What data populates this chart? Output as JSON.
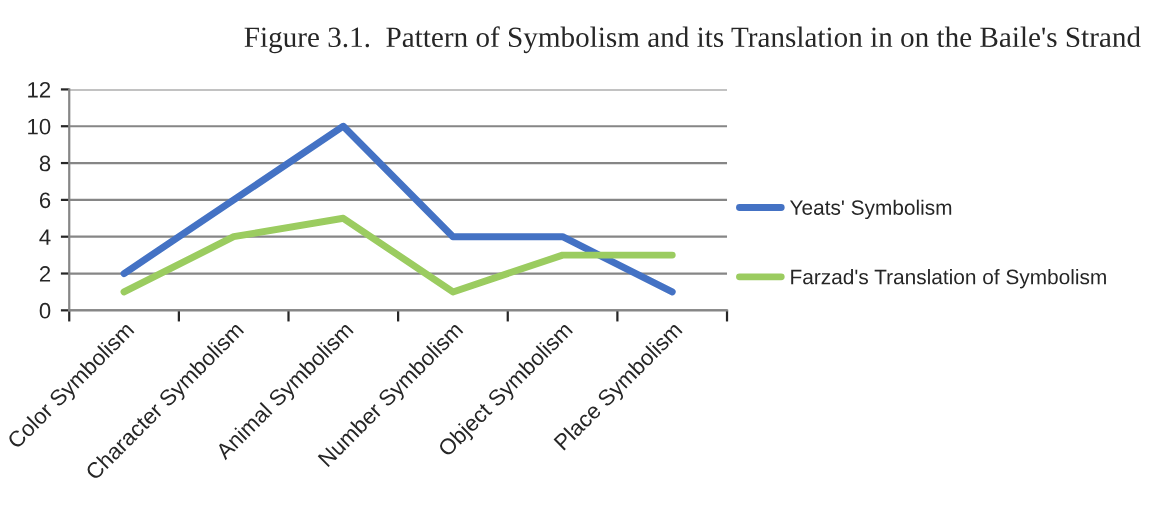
{
  "chart_data": {
    "type": "line",
    "title": "Figure 3.1.  Pattern of Symbolism and its Translation in on the Baile's Strand",
    "categories": [
      "Color Symbolism",
      "Character Symbolism",
      "Animal Symbolism",
      "Number Symbolism",
      "Object Symbolism",
      "Place Symbolism"
    ],
    "series": [
      {
        "name": "Yeats' Symbolism",
        "color": "#4472c4",
        "values": [
          2,
          6,
          10,
          4,
          4,
          1
        ]
      },
      {
        "name": "Farzad's Translation of Symbolism",
        "color": "#9bcc60",
        "values": [
          1,
          4,
          5,
          1,
          3,
          3
        ]
      }
    ],
    "ylim": [
      0,
      12
    ],
    "yticks": [
      0,
      2,
      4,
      6,
      8,
      10,
      12
    ],
    "grid": "y",
    "legend": "right",
    "marker": "none",
    "line_style": "solid"
  }
}
